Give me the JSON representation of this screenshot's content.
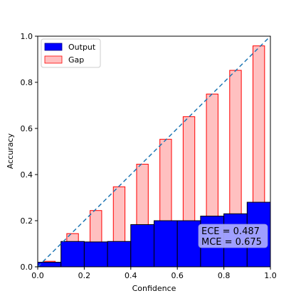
{
  "chart_data": {
    "type": "bar",
    "xlabel": "Confidence",
    "ylabel": "Accuracy",
    "xlim": [
      0.0,
      1.0
    ],
    "ylim": [
      0.0,
      1.0
    ],
    "xticks": [
      "0.0",
      "0.2",
      "0.4",
      "0.6",
      "0.8",
      "1.0"
    ],
    "yticks": [
      "0.0",
      "0.2",
      "0.4",
      "0.6",
      "0.8",
      "1.0"
    ],
    "bin_width": 0.1,
    "bin_centers": [
      0.05,
      0.15,
      0.25,
      0.35,
      0.45,
      0.55,
      0.65,
      0.75,
      0.85,
      0.95
    ],
    "series": [
      {
        "name": "Output",
        "color": "#0000ff",
        "values": [
          0.02,
          0.11,
          0.108,
          0.11,
          0.183,
          0.2,
          0.2,
          0.22,
          0.23,
          0.28
        ]
      },
      {
        "name": "Gap",
        "color": "#ffc0c0",
        "edge_color": "#ff0000",
        "values": [
          0.024,
          0.144,
          0.244,
          0.347,
          0.445,
          0.553,
          0.651,
          0.749,
          0.852,
          0.958
        ]
      }
    ],
    "diagonal": {
      "color": "#1f77b4",
      "style": "dashed"
    },
    "legend": {
      "placement": "top-left",
      "entries": [
        "Output",
        "Gap"
      ]
    },
    "annotation": {
      "lines": [
        "ECE = 0.487",
        "MCE = 0.675"
      ],
      "placement": "bottom-right",
      "background": "#b0b0ff"
    },
    "grid": false
  }
}
